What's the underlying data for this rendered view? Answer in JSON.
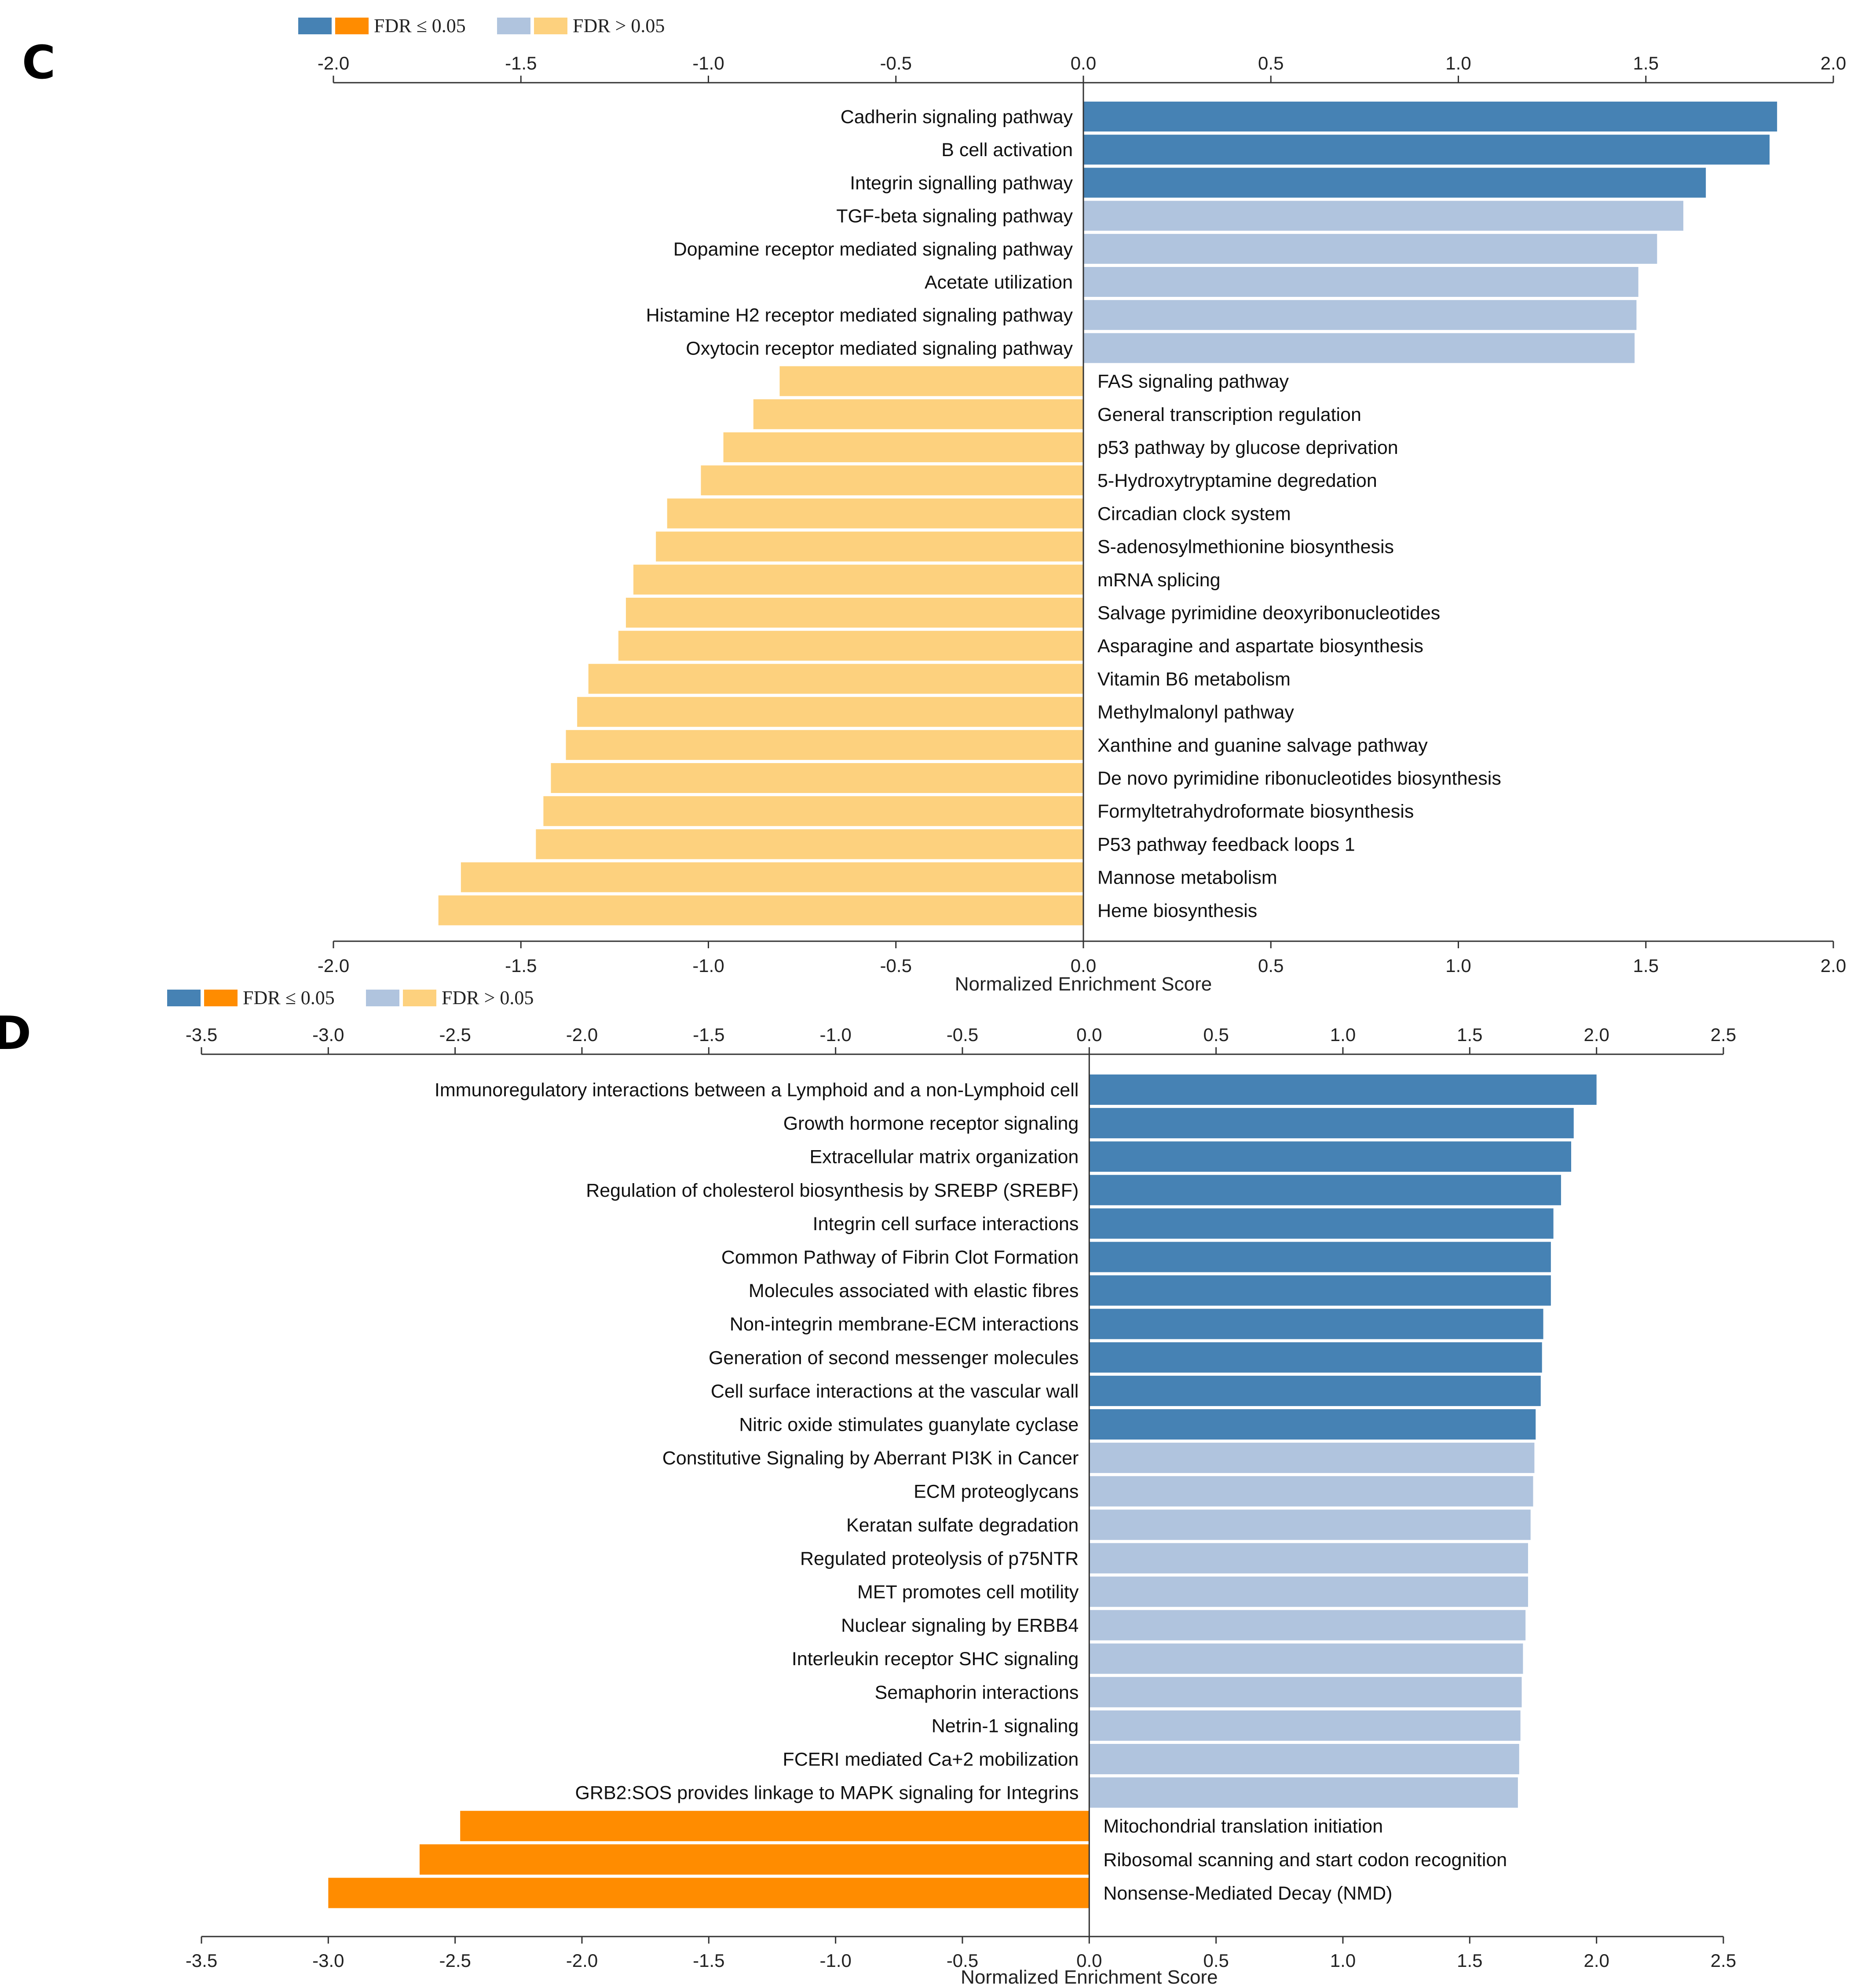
{
  "colors": {
    "pos_sig": "#4682b4",
    "pos_ns": "#b0c4de",
    "neg_sig": "#ff8c00",
    "neg_ns": "#fdd17e"
  },
  "chart_data": [
    {
      "panel": "C",
      "type": "bar",
      "orientation": "horizontal",
      "legend": {
        "sig_label": "FDR ≤ 0.05",
        "ns_label": "FDR > 0.05",
        "placement": "top-left"
      },
      "xlabel": "Normalized Enrichment Score",
      "xlim": [
        -2.0,
        2.0
      ],
      "ticks": [
        -2.0,
        -1.5,
        -1.0,
        -0.5,
        0.0,
        0.5,
        1.0,
        1.5,
        2.0
      ],
      "tick_labels": [
        "-2.0",
        "-1.5",
        "-1.0",
        "-0.5",
        "0.0",
        "0.5",
        "1.0",
        "1.5",
        "2.0"
      ],
      "categories": [
        "Cadherin signaling pathway",
        "B cell activation",
        "Integrin signalling pathway",
        "TGF-beta signaling pathway",
        "Dopamine receptor mediated signaling pathway",
        "Acetate utilization",
        "Histamine H2 receptor mediated signaling pathway",
        "Oxytocin receptor mediated signaling pathway",
        "FAS signaling pathway",
        "General transcription regulation",
        "p53 pathway by glucose deprivation",
        "5-Hydroxytryptamine degredation",
        "Circadian clock system",
        "S-adenosylmethionine biosynthesis",
        "mRNA splicing",
        "Salvage pyrimidine deoxyribonucleotides",
        "Asparagine and aspartate biosynthesis",
        "Vitamin B6 metabolism",
        "Methylmalonyl pathway",
        "Xanthine and guanine salvage pathway",
        "De novo pyrimidine ribonucleotides biosynthesis",
        "Formyltetrahydroformate biosynthesis",
        "P53 pathway feedback loops 1",
        "Mannose metabolism",
        "Heme biosynthesis"
      ],
      "values": [
        1.85,
        1.83,
        1.66,
        1.6,
        1.53,
        1.48,
        1.475,
        1.47,
        -0.81,
        -0.88,
        -0.96,
        -1.02,
        -1.11,
        -1.14,
        -1.2,
        -1.22,
        -1.24,
        -1.32,
        -1.35,
        -1.38,
        -1.42,
        -1.44,
        -1.46,
        -1.66,
        -1.72
      ],
      "significant": [
        true,
        true,
        true,
        false,
        false,
        false,
        false,
        false,
        false,
        false,
        false,
        false,
        false,
        false,
        false,
        false,
        false,
        false,
        false,
        false,
        false,
        false,
        false,
        false,
        false
      ]
    },
    {
      "panel": "D",
      "type": "bar",
      "orientation": "horizontal",
      "legend": {
        "sig_label": "FDR ≤ 0.05",
        "ns_label": "FDR > 0.05",
        "placement": "top-left"
      },
      "xlabel": "Normalized Enrichment Score",
      "xlim": [
        -3.5,
        2.5
      ],
      "ticks": [
        -3.5,
        -3.0,
        -2.5,
        -2.0,
        -1.5,
        -1.0,
        -0.5,
        0.0,
        0.5,
        1.0,
        1.5,
        2.0,
        2.5
      ],
      "tick_labels": [
        "-3.5",
        "-3.0",
        "-2.5",
        "-2.0",
        "-1.5",
        "-1.0",
        "-0.5",
        "0.0",
        "0.5",
        "1.0",
        "1.5",
        "2.0",
        "2.5"
      ],
      "categories": [
        "Immunoregulatory interactions between a Lymphoid and a non-Lymphoid cell",
        "Growth hormone receptor signaling",
        "Extracellular matrix organization",
        "Regulation of cholesterol biosynthesis by SREBP (SREBF)",
        "Integrin cell surface interactions",
        "Common Pathway of Fibrin Clot Formation",
        "Molecules associated with elastic fibres",
        "Non-integrin membrane-ECM interactions",
        "Generation of second messenger molecules",
        "Cell surface interactions at the vascular wall",
        "Nitric oxide stimulates guanylate cyclase",
        "Constitutive Signaling by Aberrant PI3K in Cancer",
        "ECM proteoglycans",
        "Keratan sulfate degradation",
        "Regulated proteolysis of p75NTR",
        "MET promotes cell motility",
        "Nuclear signaling by ERBB4",
        "Interleukin receptor SHC signaling",
        "Semaphorin interactions",
        "Netrin-1 signaling",
        "FCERI mediated Ca+2 mobilization",
        "GRB2:SOS provides linkage to MAPK signaling for Integrins",
        "Mitochondrial translation initiation",
        "Ribosomal scanning and start codon recognition",
        "Nonsense-Mediated Decay (NMD)"
      ],
      "values": [
        2.0,
        1.91,
        1.9,
        1.86,
        1.83,
        1.82,
        1.82,
        1.79,
        1.785,
        1.78,
        1.76,
        1.755,
        1.75,
        1.74,
        1.73,
        1.73,
        1.72,
        1.71,
        1.705,
        1.7,
        1.695,
        1.69,
        -2.48,
        -2.64,
        -3.0
      ],
      "significant": [
        true,
        true,
        true,
        true,
        true,
        true,
        true,
        true,
        true,
        true,
        true,
        false,
        false,
        false,
        false,
        false,
        false,
        false,
        false,
        false,
        false,
        false,
        true,
        true,
        true
      ]
    }
  ]
}
